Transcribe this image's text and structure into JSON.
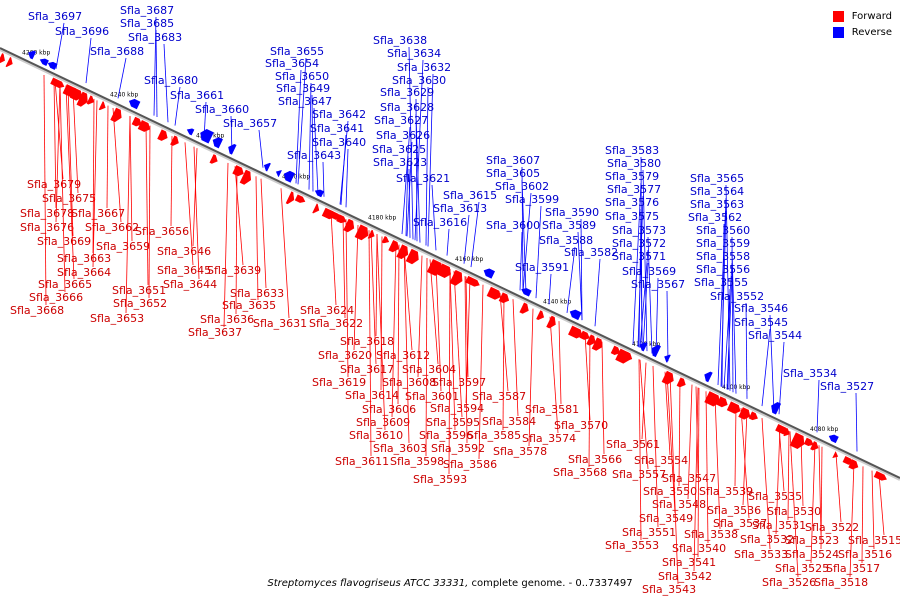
{
  "legend": [
    {
      "label": "Forward",
      "color": "#ff0000"
    },
    {
      "label": "Reverse",
      "color": "#0000ff"
    }
  ],
  "caption": {
    "organism": "Streptomyces flavogriseus ATCC 33331,",
    "rest": " complete genome. - 0..7337497"
  },
  "colors": {
    "forward": "#ff0000",
    "reverse": "#0000ff",
    "backbone": "#808080"
  },
  "ticks": [
    "4260 kbp",
    "4240 kbp",
    "4220 kbp",
    "4200 kbp",
    "4180 kbp",
    "4160 kbp",
    "4140 kbp",
    "4120 kbp",
    "4100 kbp",
    "4080 kbp"
  ],
  "reverse_genes": [
    "Sfla_3697",
    "Sfla_3696",
    "Sfla_3687",
    "Sfla_3685",
    "Sfla_3683",
    "Sfla_3688",
    "Sfla_3680",
    "Sfla_3661",
    "Sfla_3660",
    "Sfla_3657",
    "Sfla_3655",
    "Sfla_3654",
    "Sfla_3650",
    "Sfla_3649",
    "Sfla_3647",
    "Sfla_3642",
    "Sfla_3641",
    "Sfla_3640",
    "Sfla_3643",
    "Sfla_3638",
    "Sfla_3634",
    "Sfla_3632",
    "Sfla_3630",
    "Sfla_3629",
    "Sfla_3628",
    "Sfla_3627",
    "Sfla_3626",
    "Sfla_3625",
    "Sfla_3623",
    "Sfla_3621",
    "Sfla_3615",
    "Sfla_3613",
    "Sfla_3616",
    "Sfla_3607",
    "Sfla_3605",
    "Sfla_3602",
    "Sfla_3599",
    "Sfla_3600",
    "Sfla_3590",
    "Sfla_3589",
    "Sfla_3588",
    "Sfla_3582",
    "Sfla_3591",
    "Sfla_3583",
    "Sfla_3580",
    "Sfla_3579",
    "Sfla_3577",
    "Sfla_3576",
    "Sfla_3575",
    "Sfla_3573",
    "Sfla_3572",
    "Sfla_3571",
    "Sfla_3569",
    "Sfla_3567",
    "Sfla_3565",
    "Sfla_3564",
    "Sfla_3563",
    "Sfla_3562",
    "Sfla_3560",
    "Sfla_3559",
    "Sfla_3558",
    "Sfla_3556",
    "Sfla_3555",
    "Sfla_3552",
    "Sfla_3546",
    "Sfla_3545",
    "Sfla_3544",
    "Sfla_3534",
    "Sfla_3527"
  ],
  "forward_genes": [
    "Sfla_3679",
    "Sfla_3675",
    "Sfla_3678",
    "Sfla_3667",
    "Sfla_3676",
    "Sfla_3662",
    "Sfla_3669",
    "Sfla_3659",
    "Sfla_3663",
    "Sfla_3664",
    "Sfla_3665",
    "Sfla_3666",
    "Sfla_3668",
    "Sfla_3656",
    "Sfla_3646",
    "Sfla_3645",
    "Sfla_3644",
    "Sfla_3651",
    "Sfla_3652",
    "Sfla_3653",
    "Sfla_3639",
    "Sfla_3633",
    "Sfla_3635",
    "Sfla_3636",
    "Sfla_3637",
    "Sfla_3631",
    "Sfla_3624",
    "Sfla_3622",
    "Sfla_3618",
    "Sfla_3620",
    "Sfla_3612",
    "Sfla_3617",
    "Sfla_3619",
    "Sfla_3614",
    "Sfla_3608",
    "Sfla_3604",
    "Sfla_3601",
    "Sfla_3597",
    "Sfla_3606",
    "Sfla_3609",
    "Sfla_3610",
    "Sfla_3603",
    "Sfla_3611",
    "Sfla_3598",
    "Sfla_3594",
    "Sfla_3595",
    "Sfla_3596",
    "Sfla_3592",
    "Sfla_3593",
    "Sfla_3586",
    "Sfla_3587",
    "Sfla_3584",
    "Sfla_3581",
    "Sfla_3585",
    "Sfla_3578",
    "Sfla_3574",
    "Sfla_3570",
    "Sfla_3566",
    "Sfla_3568",
    "Sfla_3561",
    "Sfla_3557",
    "Sfla_3554",
    "Sfla_3547",
    "Sfla_3550",
    "Sfla_3548",
    "Sfla_3549",
    "Sfla_3551",
    "Sfla_3553",
    "Sfla_3539",
    "Sfla_3536",
    "Sfla_3537",
    "Sfla_3538",
    "Sfla_3540",
    "Sfla_3541",
    "Sfla_3542",
    "Sfla_3543",
    "Sfla_3535",
    "Sfla_3530",
    "Sfla_3531",
    "Sfla_3532",
    "Sfla_3533",
    "Sfla_3522",
    "Sfla_3523",
    "Sfla_3524",
    "Sfla_3525",
    "Sfla_3526",
    "Sfla_3515",
    "Sfla_3516",
    "Sfla_3517",
    "Sfla_3518"
  ]
}
